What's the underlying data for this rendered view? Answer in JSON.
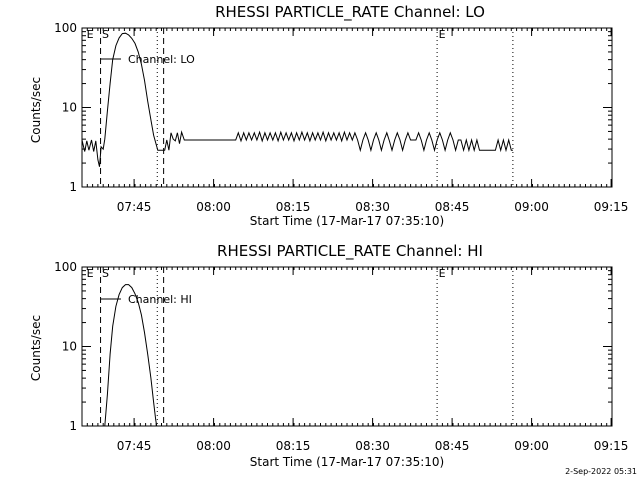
{
  "footer": {
    "timestamp": "2-Sep-2022 05:31"
  },
  "chart_data": [
    {
      "type": "line",
      "title": "RHESSI PARTICLE_RATE Channel: LO",
      "xlabel": "Start Time (17-Mar-17 07:35:10)",
      "ylabel": "Counts/sec",
      "yscale": "log",
      "ylim": [
        1,
        100
      ],
      "xlim": [
        0,
        100
      ],
      "x_unit": "minutes after 07:35:10",
      "x_ticks": [
        {
          "x": 9.83,
          "label": "07:45"
        },
        {
          "x": 24.83,
          "label": "08:00"
        },
        {
          "x": 39.83,
          "label": "08:15"
        },
        {
          "x": 54.83,
          "label": "08:30"
        },
        {
          "x": 69.83,
          "label": "08:45"
        },
        {
          "x": 84.83,
          "label": "09:00"
        },
        {
          "x": 99.83,
          "label": "09:15"
        }
      ],
      "y_ticks": [
        {
          "y": 1,
          "label": "1"
        },
        {
          "y": 10,
          "label": "10"
        },
        {
          "y": 100,
          "label": "100"
        }
      ],
      "legend": {
        "label": "Channel: LO",
        "placement": "top-left"
      },
      "markers": [
        {
          "x": 0.6,
          "label": "E",
          "style": "none"
        },
        {
          "x": 3.5,
          "label": "S",
          "style": "dashed"
        },
        {
          "x": 14.2,
          "label": "",
          "style": "dotted"
        },
        {
          "x": 15.4,
          "label": "",
          "style": "dashed"
        },
        {
          "x": 67.0,
          "label": "E",
          "style": "dotted"
        },
        {
          "x": 81.3,
          "label": "",
          "style": "dotted"
        }
      ],
      "series": [
        {
          "name": "Channel: LO",
          "points": [
            [
              0,
              3.9
            ],
            [
              0.5,
              2.8
            ],
            [
              0.9,
              3.8
            ],
            [
              1.3,
              2.9
            ],
            [
              1.8,
              3.9
            ],
            [
              2.2,
              2.8
            ],
            [
              2.6,
              3.8
            ],
            [
              3.0,
              2.2
            ],
            [
              3.3,
              1.8
            ],
            [
              3.6,
              3.2
            ],
            [
              4.0,
              3.0
            ],
            [
              4.3,
              4.0
            ],
            [
              4.8,
              9
            ],
            [
              5.3,
              20
            ],
            [
              5.8,
              40
            ],
            [
              6.4,
              60
            ],
            [
              7.0,
              75
            ],
            [
              7.6,
              85
            ],
            [
              8.2,
              86
            ],
            [
              8.8,
              82
            ],
            [
              9.4,
              74
            ],
            [
              10.0,
              64
            ],
            [
              10.6,
              50
            ],
            [
              11.2,
              35
            ],
            [
              11.8,
              22
            ],
            [
              12.4,
              12
            ],
            [
              13.0,
              7
            ],
            [
              13.5,
              4.5
            ],
            [
              13.9,
              3.6
            ],
            [
              14.3,
              2.9
            ],
            [
              14.6,
              2.9
            ],
            [
              15.0,
              2.9
            ],
            [
              15.6,
              2.9
            ],
            [
              16.0,
              3.9
            ],
            [
              16.4,
              2.9
            ],
            [
              16.8,
              4.8
            ],
            [
              17.2,
              4.0
            ],
            [
              17.6,
              3.8
            ],
            [
              18.0,
              4.8
            ],
            [
              18.4,
              3.5
            ],
            [
              18.8,
              4.9
            ],
            [
              19.3,
              3.9
            ],
            [
              20,
              3.9
            ],
            [
              21,
              3.9
            ],
            [
              22,
              3.9
            ],
            [
              23,
              3.9
            ],
            [
              24,
              3.9
            ],
            [
              25,
              3.9
            ],
            [
              26,
              3.9
            ],
            [
              27,
              3.9
            ],
            [
              28,
              3.9
            ],
            [
              29,
              3.9
            ],
            [
              29.5,
              4.8
            ],
            [
              30,
              3.8
            ],
            [
              30.5,
              4.8
            ],
            [
              31,
              3.9
            ],
            [
              31.5,
              4.8
            ],
            [
              32,
              3.9
            ],
            [
              32.5,
              4.8
            ],
            [
              33,
              3.9
            ],
            [
              33.5,
              4.9
            ],
            [
              34,
              3.8
            ],
            [
              34.5,
              4.8
            ],
            [
              35,
              3.9
            ],
            [
              35.5,
              4.8
            ],
            [
              36,
              3.9
            ],
            [
              36.5,
              4.8
            ],
            [
              37,
              3.8
            ],
            [
              37.5,
              4.9
            ],
            [
              38,
              3.9
            ],
            [
              38.5,
              4.8
            ],
            [
              39,
              3.9
            ],
            [
              39.5,
              4.8
            ],
            [
              40,
              3.8
            ],
            [
              40.5,
              4.8
            ],
            [
              41,
              3.9
            ],
            [
              41.5,
              4.9
            ],
            [
              42,
              3.9
            ],
            [
              42.5,
              4.8
            ],
            [
              43,
              3.8
            ],
            [
              43.5,
              4.8
            ],
            [
              44,
              3.9
            ],
            [
              44.5,
              4.8
            ],
            [
              45,
              3.9
            ],
            [
              45.5,
              4.9
            ],
            [
              46,
              3.8
            ],
            [
              46.5,
              4.8
            ],
            [
              47,
              3.9
            ],
            [
              47.5,
              4.8
            ],
            [
              48,
              3.9
            ],
            [
              48.5,
              4.8
            ],
            [
              49,
              3.8
            ],
            [
              49.5,
              4.9
            ],
            [
              50,
              3.9
            ],
            [
              50.5,
              4.8
            ],
            [
              51,
              3.9
            ],
            [
              51.5,
              4.8
            ],
            [
              52,
              3.9
            ],
            [
              52.5,
              2.9
            ],
            [
              53,
              3.9
            ],
            [
              53.5,
              4.8
            ],
            [
              54,
              3.9
            ],
            [
              54.5,
              2.9
            ],
            [
              55,
              3.9
            ],
            [
              55.5,
              4.8
            ],
            [
              56,
              3.9
            ],
            [
              56.5,
              2.9
            ],
            [
              57,
              3.9
            ],
            [
              57.5,
              4.8
            ],
            [
              58,
              3.8
            ],
            [
              58.5,
              2.9
            ],
            [
              59,
              3.9
            ],
            [
              59.5,
              4.8
            ],
            [
              60,
              3.9
            ],
            [
              60.5,
              2.9
            ],
            [
              61,
              3.9
            ],
            [
              61.5,
              4.8
            ],
            [
              62,
              3.9
            ],
            [
              63,
              3.9
            ],
            [
              63.5,
              4.8
            ],
            [
              64,
              3.9
            ],
            [
              64.5,
              2.9
            ],
            [
              65,
              3.9
            ],
            [
              65.5,
              4.8
            ],
            [
              66,
              3.9
            ],
            [
              66.5,
              2.9
            ],
            [
              67,
              3.9
            ],
            [
              67.5,
              4.8
            ],
            [
              68,
              3.9
            ],
            [
              68.5,
              2.9
            ],
            [
              69,
              3.9
            ],
            [
              69.5,
              4.8
            ],
            [
              70,
              3.9
            ],
            [
              70.5,
              2.9
            ],
            [
              71,
              3.9
            ],
            [
              71.5,
              3.9
            ],
            [
              72,
              2.9
            ],
            [
              72.5,
              3.9
            ],
            [
              73,
              2.9
            ],
            [
              73.5,
              3.9
            ],
            [
              74,
              2.9
            ],
            [
              74.5,
              3.9
            ],
            [
              75,
              2.9
            ],
            [
              76,
              2.9
            ],
            [
              77,
              2.9
            ],
            [
              78,
              2.9
            ],
            [
              78.5,
              3.9
            ],
            [
              79,
              2.9
            ],
            [
              79.5,
              3.9
            ],
            [
              80,
              2.9
            ],
            [
              80.5,
              3.9
            ],
            [
              81,
              2.9
            ],
            [
              81.3,
              2.9
            ]
          ]
        }
      ]
    },
    {
      "type": "line",
      "title": "RHESSI PARTICLE_RATE Channel: HI",
      "xlabel": "Start Time (17-Mar-17 07:35:10)",
      "ylabel": "Counts/sec",
      "yscale": "log",
      "ylim": [
        1,
        100
      ],
      "xlim": [
        0,
        100
      ],
      "x_unit": "minutes after 07:35:10",
      "x_ticks": [
        {
          "x": 9.83,
          "label": "07:45"
        },
        {
          "x": 24.83,
          "label": "08:00"
        },
        {
          "x": 39.83,
          "label": "08:15"
        },
        {
          "x": 54.83,
          "label": "08:30"
        },
        {
          "x": 69.83,
          "label": "08:45"
        },
        {
          "x": 84.83,
          "label": "09:00"
        },
        {
          "x": 99.83,
          "label": "09:15"
        }
      ],
      "y_ticks": [
        {
          "y": 1,
          "label": "1"
        },
        {
          "y": 10,
          "label": "10"
        },
        {
          "y": 100,
          "label": "100"
        }
      ],
      "legend": {
        "label": "Channel: HI",
        "placement": "top-left"
      },
      "markers": [
        {
          "x": 0.6,
          "label": "E",
          "style": "none"
        },
        {
          "x": 3.5,
          "label": "S",
          "style": "dashed"
        },
        {
          "x": 14.2,
          "label": "",
          "style": "dotted"
        },
        {
          "x": 15.4,
          "label": "",
          "style": "dashed"
        },
        {
          "x": 67.0,
          "label": "E",
          "style": "dotted"
        },
        {
          "x": 81.3,
          "label": "",
          "style": "dotted"
        }
      ],
      "series": [
        {
          "name": "Channel: HI",
          "points": [
            [
              4.3,
              1.0
            ],
            [
              4.8,
              2.5
            ],
            [
              5.3,
              8
            ],
            [
              5.8,
              18
            ],
            [
              6.4,
              32
            ],
            [
              7.0,
              45
            ],
            [
              7.6,
              55
            ],
            [
              8.2,
              60
            ],
            [
              8.8,
              60
            ],
            [
              9.4,
              55
            ],
            [
              10.0,
              46
            ],
            [
              10.6,
              36
            ],
            [
              11.2,
              25
            ],
            [
              11.8,
              15
            ],
            [
              12.4,
              8
            ],
            [
              13.0,
              4
            ],
            [
              13.5,
              2
            ],
            [
              13.9,
              1.2
            ],
            [
              14.1,
              1.0
            ]
          ]
        }
      ]
    }
  ]
}
